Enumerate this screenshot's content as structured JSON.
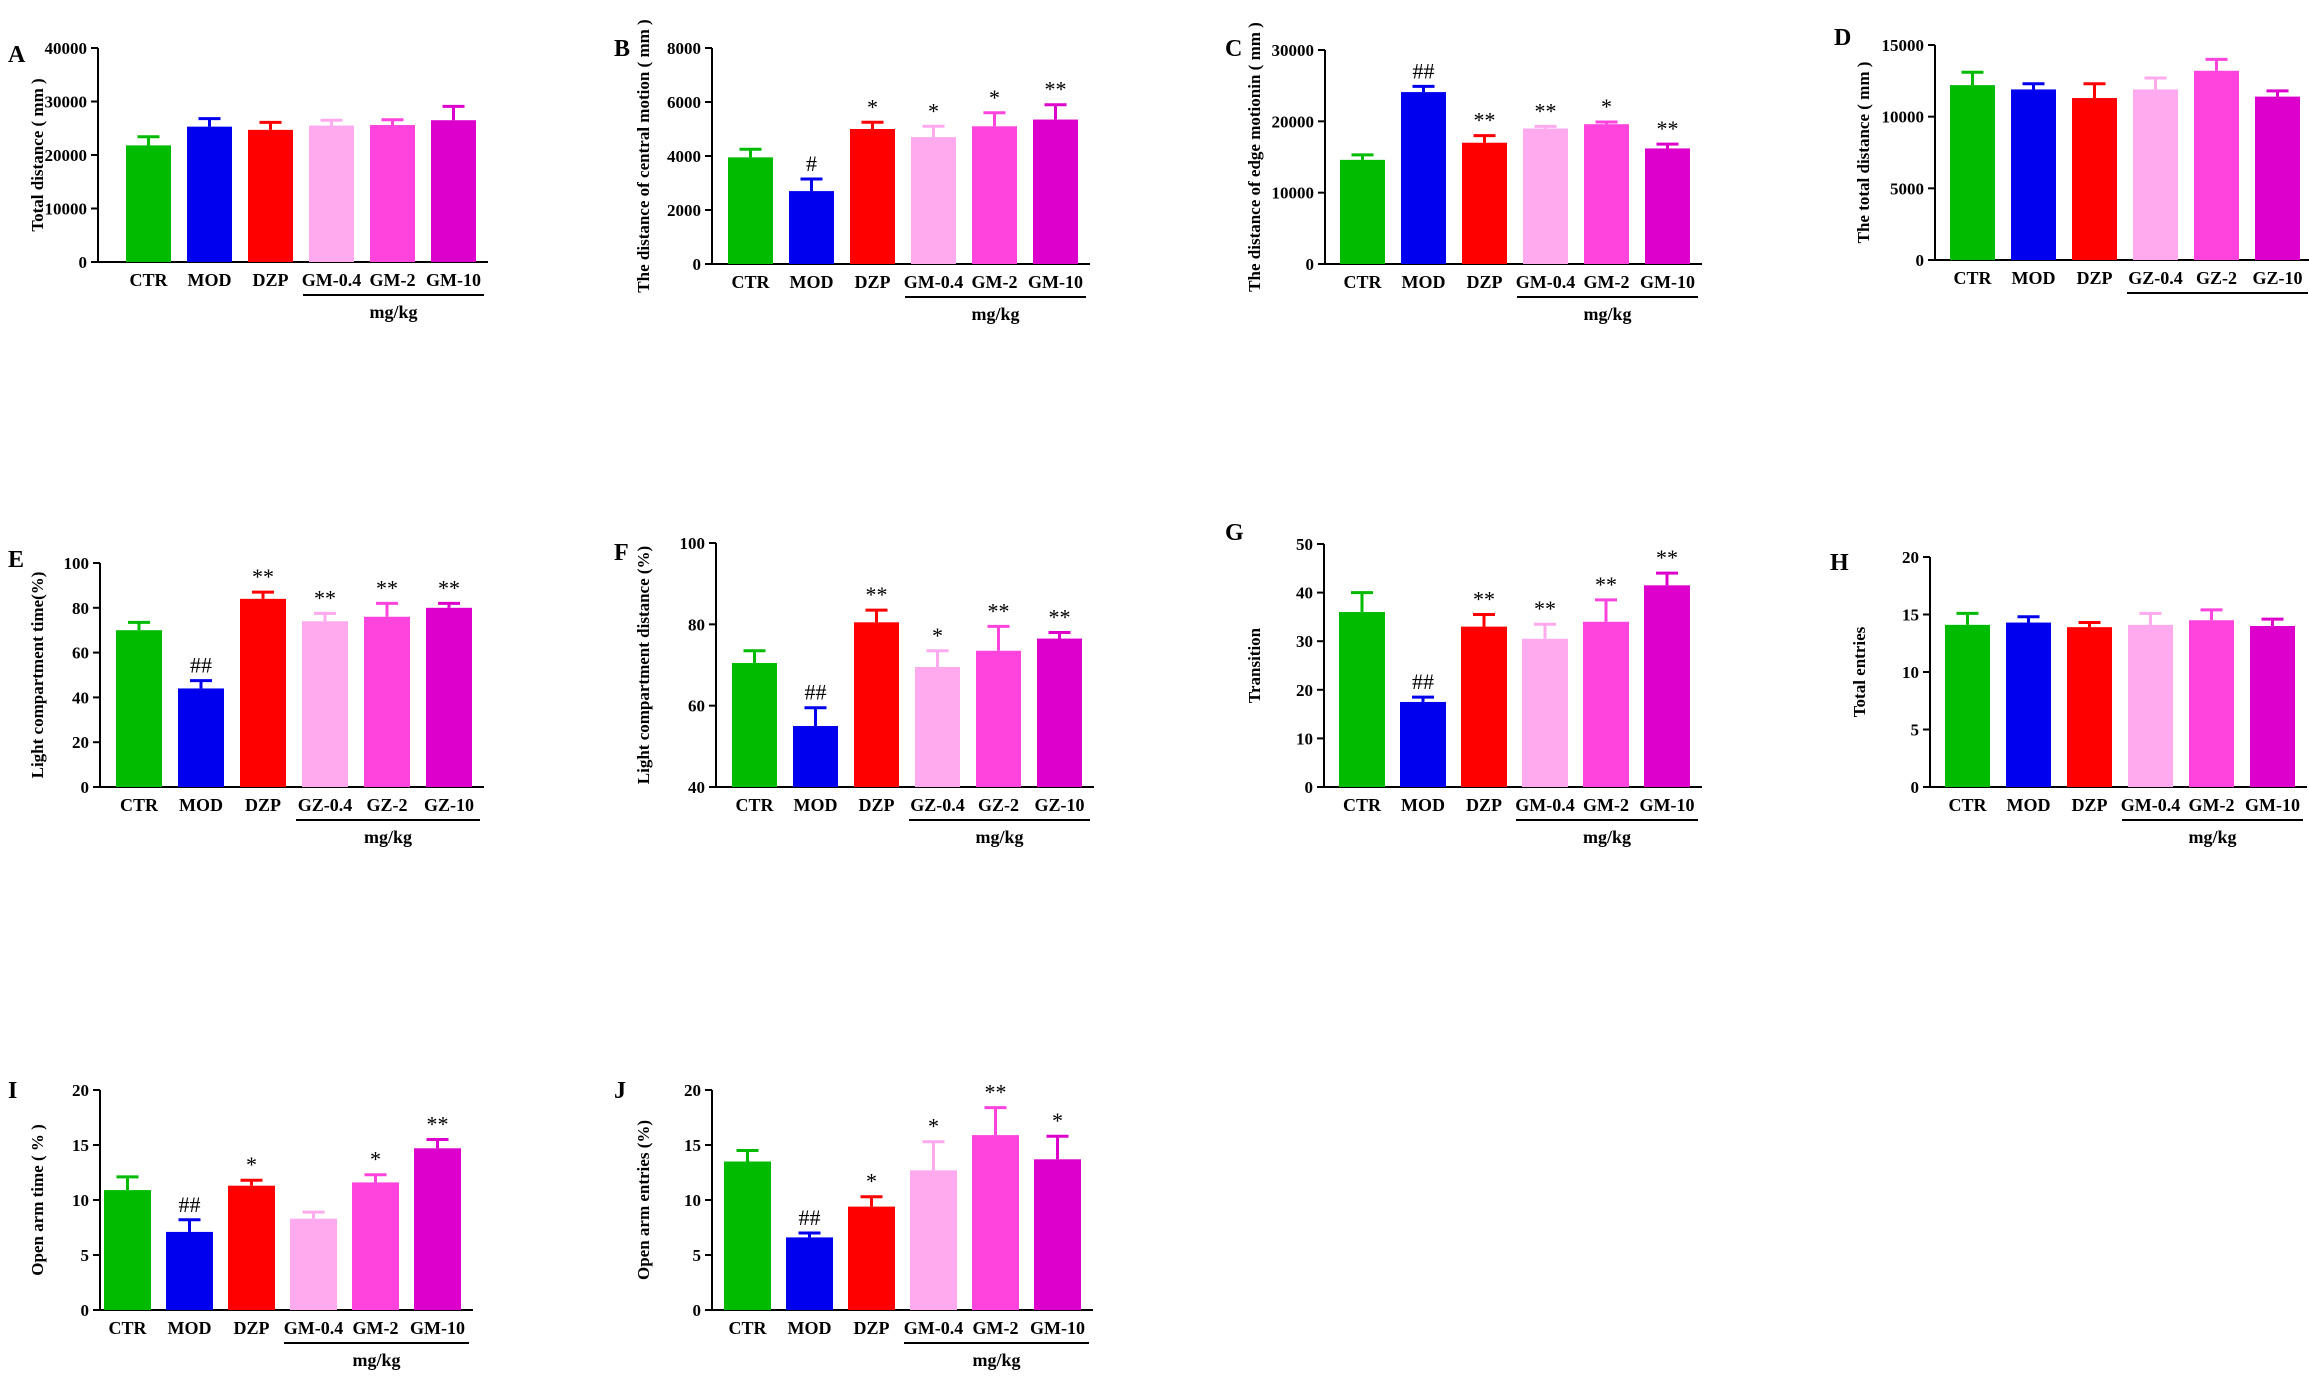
{
  "colors": [
    "#00bb00",
    "#0000ee",
    "#ff0000",
    "#ffaaee",
    "#ff44dd",
    "#dd00cc"
  ],
  "chart_data": [
    {
      "type": "bar",
      "panel": "A",
      "ylabel": "Total distance ( mm )",
      "categories": [
        "CTR",
        "MOD",
        "DZP",
        "GM-0.4",
        "GM-2",
        "GM-10"
      ],
      "dose_unit": "mg/kg",
      "values": [
        21800,
        25300,
        24700,
        25500,
        25600,
        26500
      ],
      "errors": [
        1600,
        1500,
        1400,
        1000,
        1000,
        2600
      ],
      "significance": [
        "",
        "",
        "",
        "",
        "",
        ""
      ],
      "ylim": [
        0,
        40000
      ],
      "yticks": [
        0,
        10000,
        20000,
        30000,
        40000
      ]
    },
    {
      "type": "bar",
      "panel": "B",
      "ylabel": "The distance of central motion ( mm )",
      "categories": [
        "CTR",
        "MOD",
        "DZP",
        "GM-0.4",
        "GM-2",
        "GM-10"
      ],
      "dose_unit": "mg/kg",
      "values": [
        3950,
        2700,
        5000,
        4700,
        5100,
        5350
      ],
      "errors": [
        300,
        450,
        250,
        400,
        500,
        550
      ],
      "significance": [
        "",
        "#",
        "*",
        "*",
        "*",
        "**"
      ],
      "ylim": [
        0,
        8000
      ],
      "yticks": [
        0,
        2000,
        4000,
        6000,
        8000
      ]
    },
    {
      "type": "bar",
      "panel": "C",
      "ylabel": "The distance of edge motionin ( mm )",
      "categories": [
        "CTR",
        "MOD",
        "DZP",
        "GM-0.4",
        "GM-2",
        "GM-10"
      ],
      "dose_unit": "mg/kg",
      "values": [
        14600,
        24100,
        17000,
        19000,
        19600,
        16200
      ],
      "errors": [
        700,
        800,
        1000,
        300,
        300,
        600
      ],
      "significance": [
        "",
        "##",
        "**",
        "**",
        "*",
        "**"
      ],
      "ylim": [
        0,
        30000
      ],
      "yticks": [
        0,
        10000,
        20000,
        30000
      ]
    },
    {
      "type": "bar",
      "panel": "D",
      "ylabel": "The total distance ( mm )",
      "categories": [
        "CTR",
        "MOD",
        "DZP",
        "GZ-0.4",
        "GZ-2",
        "GZ-10"
      ],
      "dose_unit": "",
      "values": [
        12200,
        11900,
        11300,
        11900,
        13200,
        11400
      ],
      "errors": [
        900,
        400,
        1000,
        800,
        800,
        400
      ],
      "significance": [
        "",
        "",
        "",
        "",
        "",
        ""
      ],
      "ylim": [
        0,
        15000
      ],
      "yticks": [
        0,
        5000,
        10000,
        15000
      ]
    },
    {
      "type": "bar",
      "panel": "E",
      "ylabel": "Light compartment time(%)",
      "categories": [
        "CTR",
        "MOD",
        "DZP",
        "GZ-0.4",
        "GZ-2",
        "GZ-10"
      ],
      "dose_unit": "mg/kg",
      "values": [
        70,
        44,
        84,
        74,
        76,
        80
      ],
      "errors": [
        3.5,
        3.5,
        3,
        3.5,
        6,
        2
      ],
      "significance": [
        "",
        "##",
        "**",
        "**",
        "**",
        "**"
      ],
      "ylim": [
        0,
        100
      ],
      "yticks": [
        0,
        20,
        40,
        60,
        80,
        100
      ]
    },
    {
      "type": "bar",
      "panel": "F",
      "ylabel": "Light compartment distance (%)",
      "categories": [
        "CTR",
        "MOD",
        "DZP",
        "GZ-0.4",
        "GZ-2",
        "GZ-10"
      ],
      "dose_unit": "mg/kg",
      "values": [
        70.5,
        55,
        80.5,
        69.5,
        73.5,
        76.5
      ],
      "errors": [
        3,
        4.5,
        3,
        4,
        6,
        1.5
      ],
      "significance": [
        "",
        "##",
        "**",
        "*",
        "**",
        "**"
      ],
      "ylim": [
        40,
        100
      ],
      "yticks": [
        40,
        60,
        80,
        100
      ]
    },
    {
      "type": "bar",
      "panel": "G",
      "ylabel": "Transition",
      "categories": [
        "CTR",
        "MOD",
        "DZP",
        "GM-0.4",
        "GM-2",
        "GM-10"
      ],
      "dose_unit": "mg/kg",
      "values": [
        36,
        17.5,
        33,
        30.5,
        34,
        41.5
      ],
      "errors": [
        4,
        1,
        2.5,
        3,
        4.5,
        2.5
      ],
      "significance": [
        "",
        "##",
        "**",
        "**",
        "**",
        "**"
      ],
      "ylim": [
        0,
        50
      ],
      "yticks": [
        0,
        10,
        20,
        30,
        40,
        50
      ]
    },
    {
      "type": "bar",
      "panel": "H",
      "ylabel": "Total entries",
      "categories": [
        "CTR",
        "MOD",
        "DZP",
        "GM-0.4",
        "GM-2",
        "GM-10"
      ],
      "dose_unit": "mg/kg",
      "values": [
        14.1,
        14.3,
        13.9,
        14.1,
        14.5,
        14
      ],
      "errors": [
        1,
        0.5,
        0.4,
        1,
        0.9,
        0.6
      ],
      "significance": [
        "",
        "",
        "",
        "",
        "",
        ""
      ],
      "ylim": [
        0,
        20
      ],
      "yticks": [
        0,
        5,
        10,
        15,
        20
      ]
    },
    {
      "type": "bar",
      "panel": "I",
      "ylabel": "Open arm time ( % )",
      "categories": [
        "CTR",
        "MOD",
        "DZP",
        "GM-0.4",
        "GM-2",
        "GM-10"
      ],
      "dose_unit": "mg/kg",
      "values": [
        10.9,
        7.1,
        11.3,
        8.3,
        11.6,
        14.7
      ],
      "errors": [
        1.2,
        1.1,
        0.5,
        0.6,
        0.7,
        0.8
      ],
      "significance": [
        "",
        "##",
        "*",
        "",
        "*",
        "**"
      ],
      "ylim": [
        0,
        20
      ],
      "yticks": [
        0,
        5,
        10,
        15,
        20
      ]
    },
    {
      "type": "bar",
      "panel": "J",
      "ylabel": "Open arm entries (%)",
      "categories": [
        "CTR",
        "MOD",
        "DZP",
        "GM-0.4",
        "GM-2",
        "GM-10"
      ],
      "dose_unit": "mg/kg",
      "values": [
        13.5,
        6.6,
        9.4,
        12.7,
        15.9,
        13.7
      ],
      "errors": [
        1,
        0.4,
        0.9,
        2.6,
        2.5,
        2.1
      ],
      "significance": [
        "",
        "##",
        "*",
        "*",
        "**",
        "*"
      ],
      "ylim": [
        0,
        20
      ],
      "yticks": [
        0,
        5,
        10,
        15,
        20
      ]
    }
  ]
}
